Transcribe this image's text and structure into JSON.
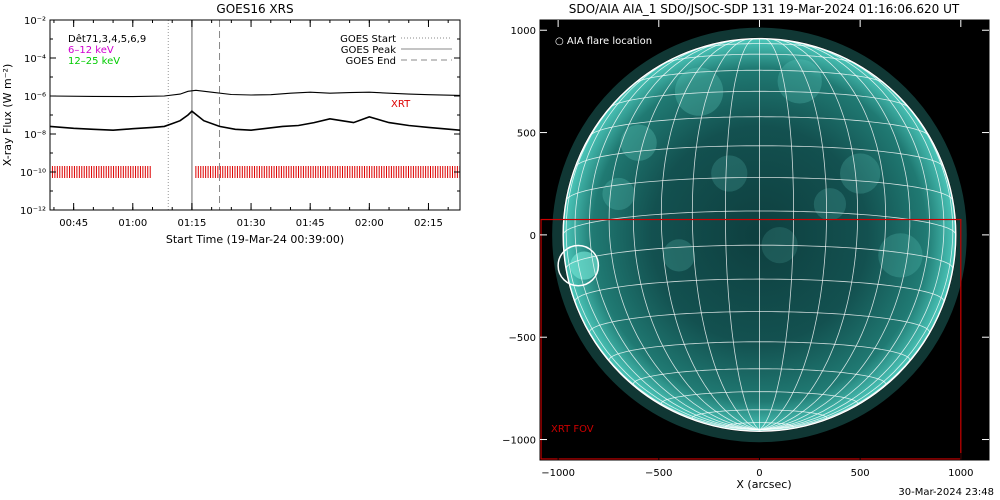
{
  "chart_data": [
    {
      "type": "line",
      "title": "GOES16 XRS",
      "xlabel": "Start Time (19-Mar-24 00:39:00)",
      "ylabel": "X-ray Flux (W m⁻²)",
      "y_scale": "log",
      "ylim": [
        1e-12,
        0.01
      ],
      "y_tick_labels": [
        "10⁻¹²",
        "10⁻¹⁰",
        "10⁻⁸",
        "10⁻⁶",
        "10⁻⁴",
        "10⁻²"
      ],
      "y_tick_values": [
        -12,
        -10,
        -8,
        -6,
        -4,
        -2
      ],
      "xlim": [
        "00:39",
        "02:23"
      ],
      "x_tick_labels": [
        "00:45",
        "01:00",
        "01:15",
        "01:30",
        "01:45",
        "02:00",
        "02:15"
      ],
      "x_tick_values": [
        "00:45",
        "01:00",
        "01:15",
        "01:30",
        "01:45",
        "02:00",
        "02:15"
      ],
      "legend_left": {
        "placement": "top-left",
        "entries": [
          {
            "label": "Dêt71,3,4,5,6,9",
            "color": "#000000"
          },
          {
            "label": "6–12 keV",
            "color": "#d000d0"
          },
          {
            "label": "12–25 keV",
            "color": "#00cc00"
          }
        ]
      },
      "legend_right": {
        "placement": "top-right",
        "entries": [
          {
            "label": "GOES Start",
            "style": "dotted",
            "color": "#888888"
          },
          {
            "label": "GOES Peak",
            "style": "solid",
            "color": "#888888"
          },
          {
            "label": "GOES End",
            "style": "dashed",
            "color": "#888888"
          }
        ]
      },
      "event_lines": {
        "start": "01:09",
        "peak": "01:15",
        "end": "01:22"
      },
      "xrt_label": "XRT",
      "xrt_color": "#dd0000",
      "xrt_level": -10,
      "xrt_coverage": [
        [
          "00:39",
          "01:05"
        ],
        [
          "01:16",
          "02:23"
        ]
      ],
      "series": [
        {
          "name": "",
          "color": "#000000",
          "x": [
            "00:39",
            "00:50",
            "01:00",
            "01:08",
            "01:12",
            "01:14",
            "01:16",
            "01:20",
            "01:25",
            "01:30",
            "01:35",
            "01:40",
            "01:45",
            "01:50",
            "01:55",
            "02:00",
            "02:05",
            "02:10",
            "02:15",
            "02:23"
          ],
          "y": [
            -6.0,
            -6.02,
            -6.03,
            -6.0,
            -5.9,
            -5.75,
            -5.7,
            -5.8,
            -5.92,
            -5.95,
            -5.93,
            -5.85,
            -5.8,
            -5.85,
            -5.82,
            -5.8,
            -5.85,
            -5.9,
            -5.93,
            -5.97
          ]
        },
        {
          "name": "",
          "color": "#000000",
          "x": [
            "00:39",
            "00:45",
            "00:50",
            "00:55",
            "01:00",
            "01:05",
            "01:08",
            "01:10",
            "01:12",
            "01:14",
            "01:15",
            "01:18",
            "01:22",
            "01:26",
            "01:30",
            "01:34",
            "01:38",
            "01:42",
            "01:46",
            "01:50",
            "01:53",
            "01:56",
            "02:00",
            "02:05",
            "02:10",
            "02:15",
            "02:23"
          ],
          "y": [
            -7.6,
            -7.7,
            -7.75,
            -7.8,
            -7.72,
            -7.65,
            -7.6,
            -7.45,
            -7.3,
            -7.0,
            -6.8,
            -7.3,
            -7.6,
            -7.75,
            -7.8,
            -7.7,
            -7.6,
            -7.55,
            -7.4,
            -7.2,
            -7.3,
            -7.4,
            -7.1,
            -7.4,
            -7.55,
            -7.65,
            -7.8
          ]
        }
      ]
    },
    {
      "type": "image",
      "title": "SDO/AIA AIA_1 SDO/JSOC-SDP 131 19-Mar-2024 01:16:06.620 UT",
      "xlabel": "X (arcsec)",
      "ylabel": "",
      "xlim": [
        -1090,
        1140
      ],
      "ylim": [
        -1100,
        1050
      ],
      "x_tick_labels": [
        "−1000",
        "−500",
        "0",
        "500",
        "1000"
      ],
      "x_tick_values": [
        -1000,
        -500,
        0,
        500,
        1000
      ],
      "y_tick_labels": [
        "1000",
        "500",
        "0",
        "−500",
        "−1000"
      ],
      "y_tick_values": [
        1000,
        500,
        0,
        -500,
        -1000
      ],
      "disk_radius_arcsec": 975,
      "disk_color": "#2f9e94",
      "legend_text": "○ AIA flare location",
      "flare_location": {
        "x": -900,
        "y": -150,
        "radius": 100
      },
      "xrt_fov": {
        "label": "XRT FOV",
        "x": [
          -1100,
          1000
        ],
        "y": [
          -1100,
          75
        ],
        "color": "#cc0000"
      }
    }
  ],
  "footer": {
    "timestamp": "30-Mar-2024 23:48"
  }
}
